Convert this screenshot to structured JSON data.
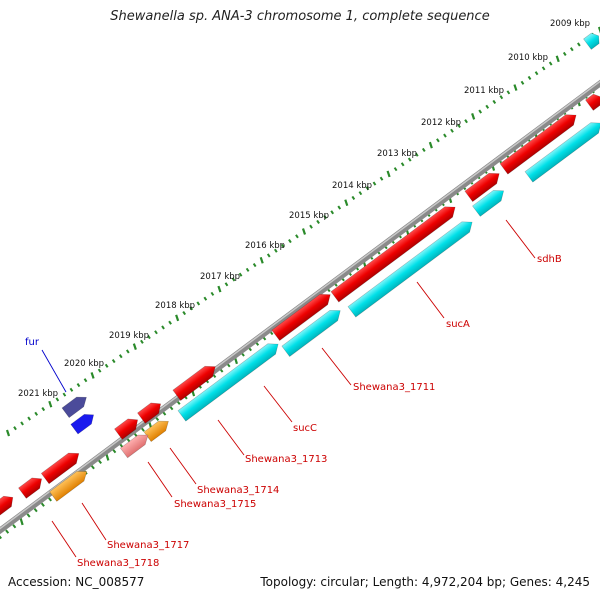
{
  "title": "Shewanella sp. ANA-3 chromosome 1, complete sequence",
  "footer": {
    "accession": "Accession: NC_008577",
    "summary": "Topology: circular; Length: 4,972,204 bp; Genes: 4,245"
  },
  "colors": {
    "gene_red": "#ee0000",
    "gene_cyan": "#00e0e8",
    "gene_orange": "#ff9900",
    "gene_pink": "#f08080",
    "gene_navy": "#4b4b9a",
    "gene_blue": "#1a1aee",
    "backbone": "#888888",
    "tick": "#2a8a2a",
    "label_red": "#cc0000",
    "label_blue": "#0000cc"
  },
  "ruler_ticks": [
    {
      "kbp": 2009,
      "label": "2009 kbp"
    },
    {
      "kbp": 2010,
      "label": "2010 kbp"
    },
    {
      "kbp": 2011,
      "label": "2011 kbp"
    },
    {
      "kbp": 2012,
      "label": "2012 kbp"
    },
    {
      "kbp": 2013,
      "label": "2013 kbp"
    },
    {
      "kbp": 2014,
      "label": "2014 kbp"
    },
    {
      "kbp": 2015,
      "label": "2015 kbp"
    },
    {
      "kbp": 2016,
      "label": "2016 kbp"
    },
    {
      "kbp": 2017,
      "label": "2017 kbp"
    },
    {
      "kbp": 2018,
      "label": "2018 kbp"
    },
    {
      "kbp": 2019,
      "label": "2019 kbp"
    },
    {
      "kbp": 2020,
      "label": "2020 kbp"
    },
    {
      "kbp": 2021,
      "label": "2021 kbp"
    }
  ],
  "gene_labels": [
    {
      "text": "sdhB",
      "color": "label_red"
    },
    {
      "text": "sucA",
      "color": "label_red"
    },
    {
      "text": "Shewana3_1711",
      "color": "label_red"
    },
    {
      "text": "sucC",
      "color": "label_red"
    },
    {
      "text": "Shewana3_1713",
      "color": "label_red"
    },
    {
      "text": "Shewana3_1714",
      "color": "label_red"
    },
    {
      "text": "Shewana3_1715",
      "color": "label_red"
    },
    {
      "text": "Shewana3_1717",
      "color": "label_red"
    },
    {
      "text": "Shewana3_1718",
      "color": "label_red"
    },
    {
      "text": "fur",
      "color": "label_blue"
    }
  ]
}
